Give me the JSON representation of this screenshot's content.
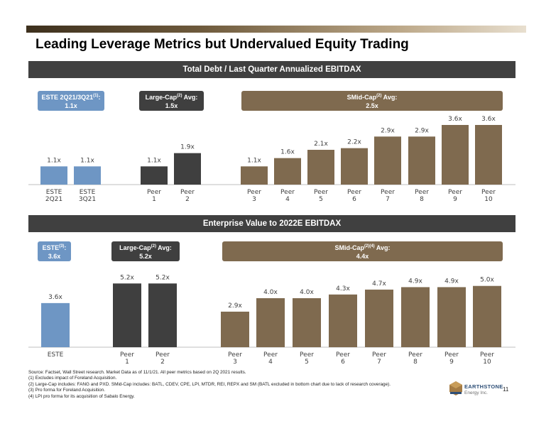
{
  "page": {
    "title": "Leading Leverage Metrics but Undervalued Equity Trading",
    "page_number": "11"
  },
  "top_section": {
    "header": "Total Debt / Last Quarter Annualized EBITDAX",
    "callouts": [
      {
        "label": "ESTE 2Q21/3Q21",
        "sup": "(1)",
        "suffix": ":",
        "value": "1.1x",
        "color": "#6e96c4"
      },
      {
        "label": "Large-Cap",
        "sup": "(2)",
        "suffix": " Avg:",
        "value": "1.5x",
        "color": "#3f3f3f"
      },
      {
        "label": "SMid-Cap",
        "sup": "(2)",
        "suffix": " Avg:",
        "value": "2.5x",
        "color": "#7f6a4f"
      }
    ]
  },
  "bottom_section": {
    "header": "Enterprise Value to 2022E EBITDAX",
    "callouts": [
      {
        "label": "ESTE",
        "sup": "(3)",
        "suffix": ":",
        "value": "3.6x",
        "color": "#6e96c4"
      },
      {
        "label": "Large-Cap",
        "sup": "(2)",
        "suffix": " Avg:",
        "value": "5.2x",
        "color": "#3f3f3f"
      },
      {
        "label": "SMid-Cap",
        "sup": "(2)(4)",
        "suffix": " Avg:",
        "value": "4.4x",
        "color": "#7f6a4f"
      }
    ]
  },
  "chart_data": [
    {
      "type": "bar",
      "title": "Total Debt / Last Quarter Annualized EBITDAX",
      "ylim": [
        0,
        4.2
      ],
      "colors": {
        "ESTE": "#6e96c4",
        "Large-Cap": "#3f3f3f",
        "SMid-Cap": "#7f6a4f"
      },
      "categories": [
        {
          "label": [
            "ESTE",
            "2Q21"
          ],
          "value": 1.1,
          "value_label": "1.1x",
          "group": "ESTE"
        },
        {
          "label": [
            "ESTE",
            "3Q21"
          ],
          "value": 1.1,
          "value_label": "1.1x",
          "group": "ESTE"
        },
        {
          "label": [
            "Peer",
            "1"
          ],
          "value": 1.1,
          "value_label": "1.1x",
          "group": "Large-Cap"
        },
        {
          "label": [
            "Peer",
            "2"
          ],
          "value": 1.9,
          "value_label": "1.9x",
          "group": "Large-Cap"
        },
        {
          "label": [
            "Peer",
            "3"
          ],
          "value": 1.1,
          "value_label": "1.1x",
          "group": "SMid-Cap"
        },
        {
          "label": [
            "Peer",
            "4"
          ],
          "value": 1.6,
          "value_label": "1.6x",
          "group": "SMid-Cap"
        },
        {
          "label": [
            "Peer",
            "5"
          ],
          "value": 2.1,
          "value_label": "2.1x",
          "group": "SMid-Cap"
        },
        {
          "label": [
            "Peer",
            "6"
          ],
          "value": 2.2,
          "value_label": "2.2x",
          "group": "SMid-Cap"
        },
        {
          "label": [
            "Peer",
            "7"
          ],
          "value": 2.9,
          "value_label": "2.9x",
          "group": "SMid-Cap"
        },
        {
          "label": [
            "Peer",
            "8"
          ],
          "value": 2.9,
          "value_label": "2.9x",
          "group": "SMid-Cap"
        },
        {
          "label": [
            "Peer",
            "9"
          ],
          "value": 3.6,
          "value_label": "3.6x",
          "group": "SMid-Cap"
        },
        {
          "label": [
            "Peer",
            "10"
          ],
          "value": 3.6,
          "value_label": "3.6x",
          "group": "SMid-Cap"
        }
      ]
    },
    {
      "type": "bar",
      "title": "Enterprise Value to 2022E EBITDAX",
      "ylim": [
        0,
        6.2
      ],
      "colors": {
        "ESTE": "#6e96c4",
        "Large-Cap": "#3f3f3f",
        "SMid-Cap": "#7f6a4f"
      },
      "categories": [
        {
          "label": [
            "ESTE"
          ],
          "value": 3.6,
          "value_label": "3.6x",
          "group": "ESTE"
        },
        {
          "label": [
            "Peer",
            "1"
          ],
          "value": 5.2,
          "value_label": "5.2x",
          "group": "Large-Cap"
        },
        {
          "label": [
            "Peer",
            "2"
          ],
          "value": 5.2,
          "value_label": "5.2x",
          "group": "Large-Cap"
        },
        {
          "label": [
            "Peer",
            "3"
          ],
          "value": 2.9,
          "value_label": "2.9x",
          "group": "SMid-Cap"
        },
        {
          "label": [
            "Peer",
            "4"
          ],
          "value": 4.0,
          "value_label": "4.0x",
          "group": "SMid-Cap"
        },
        {
          "label": [
            "Peer",
            "5"
          ],
          "value": 4.0,
          "value_label": "4.0x",
          "group": "SMid-Cap"
        },
        {
          "label": [
            "Peer",
            "6"
          ],
          "value": 4.3,
          "value_label": "4.3x",
          "group": "SMid-Cap"
        },
        {
          "label": [
            "Peer",
            "7"
          ],
          "value": 4.7,
          "value_label": "4.7x",
          "group": "SMid-Cap"
        },
        {
          "label": [
            "Peer",
            "8"
          ],
          "value": 4.9,
          "value_label": "4.9x",
          "group": "SMid-Cap"
        },
        {
          "label": [
            "Peer",
            "9"
          ],
          "value": 4.9,
          "value_label": "4.9x",
          "group": "SMid-Cap"
        },
        {
          "label": [
            "Peer",
            "10"
          ],
          "value": 5.0,
          "value_label": "5.0x",
          "group": "SMid-Cap"
        }
      ]
    }
  ],
  "footnotes": [
    "Source: Factset, Wall Street research. Market Data as of 11/1/21. All peer metrics based on 2Q 2021 results.",
    "(1)  Excludes impact of Foreland Acquisition.",
    "(2)  Large-Cap includes: FANG and PXD.  SMid-Cap includes: BATL, CDEV, CPE, LPI, MTDR, REI, REPX and SM (BATL excluded in bottom chart due to lack of research coverage).",
    "(3)  Pro forma for Foreland Acquisition.",
    "(4)  LPI pro forma for its acquisition of Sabalo Energy."
  ],
  "logo": {
    "name": "EARTHSTONE",
    "subtitle": "Energy Inc."
  }
}
